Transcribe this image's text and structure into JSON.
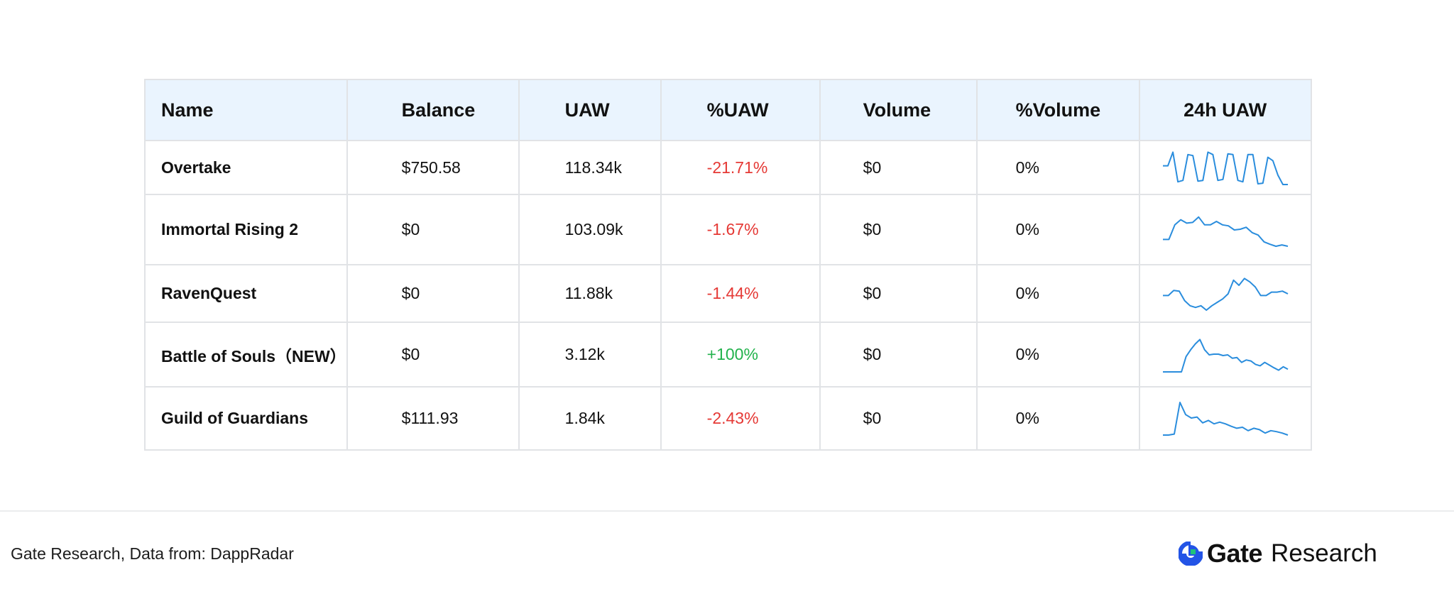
{
  "chart_data": {
    "type": "table",
    "columns": [
      "Name",
      "Balance",
      "UAW",
      "%UAW",
      "Volume",
      "%Volume",
      "24h UAW"
    ],
    "rows": [
      {
        "name": "Overtake",
        "balance": "$750.58",
        "uaw": "118.34k",
        "pct_uaw": "-21.71%",
        "pct_uaw_sign": "neg",
        "volume": "$0",
        "pct_volume": "0%",
        "spark": [
          0.45,
          0.45,
          0.05,
          0.92,
          0.88,
          0.12,
          0.15,
          0.9,
          0.88,
          0.05,
          0.12,
          0.88,
          0.85,
          0.1,
          0.12,
          0.88,
          0.92,
          0.12,
          0.12,
          0.98,
          0.96,
          0.2,
          0.3,
          0.72,
          1.0,
          1.0
        ]
      },
      {
        "name": "Immortal Rising 2",
        "balance": "$0",
        "uaw": "103.09k",
        "pct_uaw": "-1.67%",
        "pct_uaw_sign": "neg",
        "volume": "$0",
        "pct_volume": "0%",
        "spark": [
          0.78,
          0.78,
          0.35,
          0.2,
          0.3,
          0.28,
          0.12,
          0.35,
          0.35,
          0.25,
          0.35,
          0.38,
          0.5,
          0.48,
          0.42,
          0.58,
          0.65,
          0.85,
          0.92,
          0.98,
          0.94,
          0.98
        ]
      },
      {
        "name": "RavenQuest",
        "balance": "$0",
        "uaw": "11.88k",
        "pct_uaw": "-1.44%",
        "pct_uaw_sign": "neg",
        "volume": "$0",
        "pct_volume": "0%",
        "spark": [
          0.55,
          0.55,
          0.4,
          0.42,
          0.7,
          0.85,
          0.9,
          0.85,
          0.98,
          0.85,
          0.75,
          0.65,
          0.5,
          0.1,
          0.25,
          0.05,
          0.15,
          0.3,
          0.55,
          0.55,
          0.45,
          0.45,
          0.42,
          0.5
        ]
      },
      {
        "name": "Battle of Souls（NEW）",
        "balance": "$0",
        "uaw": "3.12k",
        "pct_uaw": "+100%",
        "pct_uaw_sign": "pos",
        "volume": "$0",
        "pct_volume": "0%",
        "spark": [
          1.0,
          1.0,
          1.0,
          1.0,
          1.0,
          0.55,
          0.35,
          0.18,
          0.05,
          0.35,
          0.5,
          0.48,
          0.48,
          0.52,
          0.5,
          0.6,
          0.58,
          0.72,
          0.65,
          0.68,
          0.78,
          0.82,
          0.72,
          0.8,
          0.88,
          0.95,
          0.85,
          0.92
        ]
      },
      {
        "name": "Guild of Guardians",
        "balance": "$111.93",
        "uaw": "1.84k",
        "pct_uaw": "-2.43%",
        "pct_uaw_sign": "neg",
        "volume": "$0",
        "pct_volume": "0%",
        "spark": [
          0.98,
          0.98,
          0.95,
          0.02,
          0.38,
          0.48,
          0.45,
          0.62,
          0.55,
          0.65,
          0.6,
          0.65,
          0.72,
          0.78,
          0.75,
          0.85,
          0.78,
          0.82,
          0.92,
          0.85,
          0.88,
          0.92,
          0.98
        ]
      }
    ],
    "spark_color": "#2a8ddd"
  },
  "footer": {
    "source": "Gate Research, Data from: DappRadar",
    "logo_brand": "Gate",
    "logo_sub": "Research"
  }
}
